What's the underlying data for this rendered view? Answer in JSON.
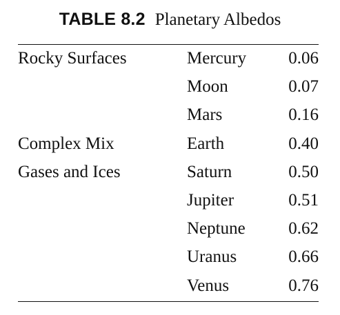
{
  "table": {
    "label": "TABLE 8.2",
    "title": "Planetary Albedos",
    "rows": [
      {
        "category": "Rocky Surfaces",
        "planet": "Mercury",
        "albedo": "0.06"
      },
      {
        "category": "",
        "planet": "Moon",
        "albedo": "0.07"
      },
      {
        "category": "",
        "planet": "Mars",
        "albedo": "0.16"
      },
      {
        "category": "Complex Mix",
        "planet": "Earth",
        "albedo": "0.40"
      },
      {
        "category": "Gases and Ices",
        "planet": "Saturn",
        "albedo": "0.50"
      },
      {
        "category": "",
        "planet": "Jupiter",
        "albedo": "0.51"
      },
      {
        "category": "",
        "planet": "Neptune",
        "albedo": "0.62"
      },
      {
        "category": "",
        "planet": "Uranus",
        "albedo": "0.66"
      },
      {
        "category": "",
        "planet": "Venus",
        "albedo": "0.76"
      }
    ]
  }
}
